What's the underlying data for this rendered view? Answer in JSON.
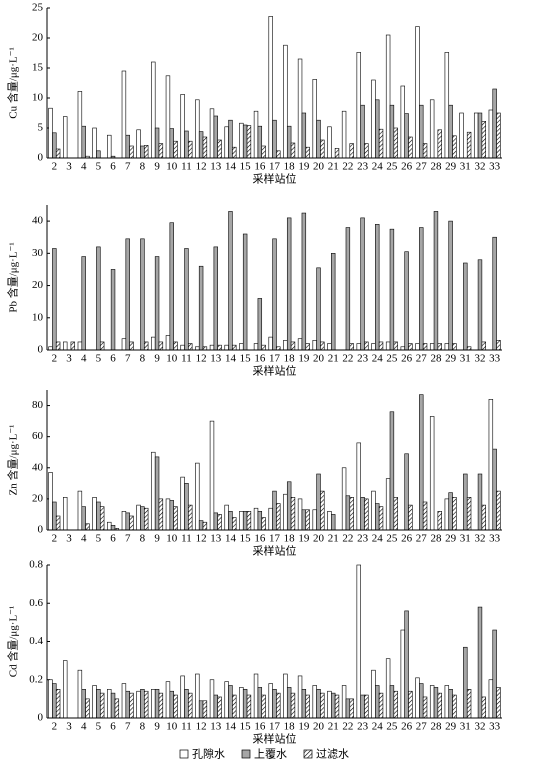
{
  "chart_data": [
    {
      "type": "bar",
      "y_label": "Cu 含量/μg·L⁻¹",
      "x_label": "采样站位",
      "categories": [
        "2",
        "3",
        "4",
        "5",
        "6",
        "7",
        "8",
        "9",
        "10",
        "11",
        "12",
        "13",
        "14",
        "15",
        "16",
        "17",
        "18",
        "19",
        "20",
        "21",
        "22",
        "23",
        "24",
        "25",
        "26",
        "27",
        "28",
        "29",
        "31",
        "32",
        "33"
      ],
      "ylim": [
        0,
        25
      ],
      "yticks": [
        0,
        5,
        10,
        15,
        20,
        25
      ],
      "series": [
        {
          "name": "孔隙水",
          "color": "#ffffff",
          "hatch": false,
          "values": [
            8.3,
            6.9,
            11.1,
            5.0,
            3.8,
            14.5,
            4.7,
            16.0,
            13.7,
            10.6,
            9.7,
            8.2,
            5.2,
            5.8,
            7.8,
            23.6,
            18.8,
            16.5,
            13.1,
            5.2,
            7.8,
            17.6,
            13.0,
            20.5,
            12.0,
            21.9,
            9.7,
            17.6,
            7.5,
            7.5,
            8.0
          ]
        },
        {
          "name": "上覆水",
          "color": "#a6a6a6",
          "hatch": false,
          "values": [
            4.2,
            null,
            5.3,
            1.2,
            0.3,
            3.8,
            2.0,
            5.0,
            4.9,
            4.5,
            4.4,
            7.0,
            6.3,
            5.5,
            5.3,
            6.3,
            5.3,
            7.5,
            6.3,
            null,
            null,
            8.8,
            9.7,
            8.8,
            7.4,
            8.8,
            null,
            8.8,
            null,
            7.5,
            11.5
          ]
        },
        {
          "name": "过滤水",
          "color": "#ffffff",
          "hatch": true,
          "values": [
            1.5,
            null,
            0.3,
            null,
            null,
            2.0,
            2.1,
            2.4,
            2.8,
            2.8,
            3.5,
            3.0,
            1.8,
            5.4,
            2.0,
            1.2,
            2.5,
            1.8,
            3.0,
            1.6,
            2.4,
            2.4,
            4.8,
            5.0,
            3.5,
            2.4,
            4.7,
            3.7,
            4.3,
            6.1,
            7.5
          ]
        }
      ]
    },
    {
      "type": "bar",
      "y_label": "Pb 含量/μg·L⁻¹",
      "x_label": "采样站位",
      "categories": [
        "2",
        "3",
        "4",
        "5",
        "6",
        "7",
        "8",
        "9",
        "10",
        "11",
        "12",
        "13",
        "14",
        "15",
        "16",
        "17",
        "18",
        "19",
        "20",
        "21",
        "22",
        "23",
        "24",
        "25",
        "26",
        "27",
        "28",
        "29",
        "31",
        "32",
        "33"
      ],
      "ylim": [
        0,
        45
      ],
      "yticks": [
        0,
        10,
        20,
        30,
        40
      ],
      "series": [
        {
          "name": "孔隙水",
          "color": "#ffffff",
          "hatch": false,
          "values": [
            1,
            2.5,
            2.5,
            null,
            null,
            3.5,
            null,
            4,
            4.5,
            1.5,
            1,
            1.5,
            1.5,
            2,
            2,
            4,
            3,
            3.5,
            3,
            2,
            null,
            2,
            2,
            2.5,
            1,
            2,
            2,
            2,
            null,
            null,
            null
          ]
        },
        {
          "name": "上覆水",
          "color": "#a6a6a6",
          "hatch": false,
          "values": [
            31.5,
            null,
            29,
            32,
            25,
            34.5,
            34.5,
            29,
            39.5,
            31.5,
            26,
            32,
            43,
            36,
            16,
            34.5,
            41,
            42.5,
            25.5,
            30,
            38,
            41,
            39,
            37.5,
            30.5,
            38,
            43,
            40,
            27,
            28,
            35
          ]
        },
        {
          "name": "过滤水",
          "color": "#ffffff",
          "hatch": true,
          "values": [
            2.5,
            2.5,
            null,
            2.5,
            null,
            2.5,
            2.5,
            2.5,
            2.5,
            2,
            1,
            1.5,
            1.5,
            null,
            1.5,
            1,
            2.5,
            2,
            2.5,
            null,
            2,
            2.5,
            2.5,
            2.5,
            2,
            2,
            2,
            2,
            1,
            2.5,
            3
          ]
        }
      ]
    },
    {
      "type": "bar",
      "y_label": "Zn 含量/μg·L⁻¹",
      "x_label": "采样站位",
      "categories": [
        "2",
        "3",
        "4",
        "5",
        "6",
        "7",
        "8",
        "9",
        "10",
        "11",
        "12",
        "13",
        "14",
        "15",
        "16",
        "17",
        "18",
        "19",
        "20",
        "21",
        "22",
        "23",
        "24",
        "25",
        "26",
        "27",
        "28",
        "29",
        "31",
        "32",
        "33"
      ],
      "ylim": [
        0,
        90
      ],
      "yticks": [
        0,
        20,
        40,
        60,
        80
      ],
      "series": [
        {
          "name": "孔隙水",
          "color": "#ffffff",
          "hatch": false,
          "values": [
            37,
            21,
            25,
            21,
            5,
            12,
            16,
            50,
            20,
            34,
            43,
            70,
            16,
            12,
            14,
            14,
            23,
            20,
            13,
            12,
            40,
            56,
            25,
            33,
            null,
            null,
            73,
            20,
            null,
            null,
            84
          ]
        },
        {
          "name": "上覆水",
          "color": "#a6a6a6",
          "hatch": false,
          "values": [
            18,
            null,
            15,
            18,
            3,
            11,
            15,
            47,
            19,
            30,
            6,
            11,
            12,
            12,
            12,
            25,
            31,
            13,
            36,
            10,
            22,
            21,
            17,
            76,
            49,
            87,
            null,
            24,
            36,
            36,
            52
          ]
        },
        {
          "name": "过滤水",
          "color": "#ffffff",
          "hatch": true,
          "values": [
            9,
            null,
            4,
            15,
            1,
            9,
            14,
            20,
            15,
            16,
            5,
            10,
            8,
            12,
            8,
            17,
            21,
            13,
            25,
            null,
            21,
            20,
            15,
            21,
            16,
            18,
            12,
            21,
            21,
            16,
            25
          ]
        }
      ]
    },
    {
      "type": "bar",
      "y_label": "Cd 含量/μg·L⁻¹",
      "x_label": "采样站位",
      "categories": [
        "2",
        "3",
        "4",
        "5",
        "6",
        "7",
        "8",
        "9",
        "10",
        "11",
        "12",
        "13",
        "14",
        "15",
        "16",
        "17",
        "18",
        "19",
        "20",
        "21",
        "22",
        "23",
        "24",
        "25",
        "26",
        "27",
        "28",
        "29",
        "31",
        "32",
        "33"
      ],
      "ylim": [
        0,
        0.8
      ],
      "yticks": [
        0,
        0.2,
        0.4,
        0.6,
        0.8
      ],
      "series": [
        {
          "name": "孔隙水",
          "color": "#ffffff",
          "hatch": false,
          "values": [
            0.2,
            0.3,
            0.25,
            0.17,
            0.15,
            0.18,
            0.14,
            0.15,
            0.19,
            0.22,
            0.23,
            0.2,
            0.19,
            0.16,
            0.23,
            0.18,
            0.23,
            0.22,
            0.17,
            0.14,
            0.17,
            0.8,
            0.25,
            0.31,
            0.46,
            0.21,
            0.17,
            0.17,
            null,
            null,
            0.2
          ]
        },
        {
          "name": "上覆水",
          "color": "#a6a6a6",
          "hatch": false,
          "values": [
            0.18,
            null,
            0.15,
            0.15,
            0.13,
            0.14,
            0.15,
            0.15,
            0.14,
            0.15,
            0.09,
            0.12,
            0.17,
            0.15,
            0.16,
            0.15,
            0.16,
            0.15,
            0.15,
            0.13,
            0.1,
            0.12,
            0.17,
            0.17,
            0.56,
            0.18,
            0.16,
            0.15,
            0.37,
            0.58,
            0.46
          ]
        },
        {
          "name": "过滤水",
          "color": "#ffffff",
          "hatch": true,
          "values": [
            0.15,
            null,
            0.1,
            0.13,
            0.1,
            0.13,
            0.14,
            0.13,
            0.12,
            0.13,
            0.09,
            0.11,
            0.12,
            0.12,
            0.12,
            0.13,
            0.13,
            0.12,
            0.13,
            0.12,
            0.1,
            0.12,
            0.13,
            0.14,
            0.14,
            0.11,
            0.13,
            0.12,
            0.15,
            0.11,
            0.16
          ]
        }
      ]
    }
  ]
}
